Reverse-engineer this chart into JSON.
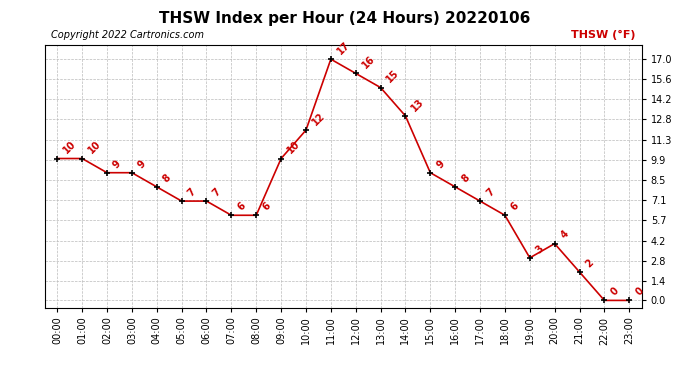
{
  "title": "THSW Index per Hour (24 Hours) 20220106",
  "copyright": "Copyright 2022 Cartronics.com",
  "legend_label": "THSW (°F)",
  "hours": [
    0,
    1,
    2,
    3,
    4,
    5,
    6,
    7,
    8,
    9,
    10,
    11,
    12,
    13,
    14,
    15,
    16,
    17,
    18,
    19,
    20,
    21,
    22,
    23
  ],
  "values": [
    10,
    10,
    9,
    9,
    8,
    7,
    7,
    6,
    6,
    10,
    12,
    17,
    16,
    15,
    13,
    9,
    8,
    7,
    6,
    3,
    4,
    2,
    0,
    0
  ],
  "x_labels": [
    "00:00",
    "01:00",
    "02:00",
    "03:00",
    "04:00",
    "05:00",
    "06:00",
    "07:00",
    "08:00",
    "09:00",
    "10:00",
    "11:00",
    "12:00",
    "13:00",
    "14:00",
    "15:00",
    "16:00",
    "17:00",
    "18:00",
    "19:00",
    "20:00",
    "21:00",
    "22:00",
    "23:00"
  ],
  "y_ticks": [
    0.0,
    1.4,
    2.8,
    4.2,
    5.7,
    7.1,
    8.5,
    9.9,
    11.3,
    12.8,
    14.2,
    15.6,
    17.0
  ],
  "ylim": [
    -0.5,
    18.0
  ],
  "line_color": "#cc0000",
  "marker_color": "#000000",
  "label_color": "#cc0000",
  "bg_color": "#ffffff",
  "grid_color": "#bbbbbb",
  "title_fontsize": 11,
  "copyright_fontsize": 7,
  "legend_color": "#cc0000",
  "legend_fontsize": 8,
  "tick_fontsize": 7,
  "value_label_fontsize": 7
}
